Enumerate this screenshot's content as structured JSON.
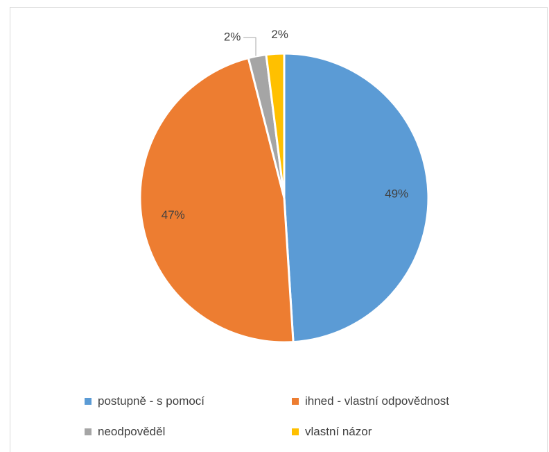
{
  "chart_data": {
    "type": "pie",
    "title": "",
    "categories": [
      "postupně - s pomocí",
      "ihned - vlastní odpovědnost",
      "neodpověděl",
      "vlastní názor"
    ],
    "values": [
      49,
      47,
      2,
      2
    ],
    "data_labels": [
      "49%",
      "47%",
      "2%",
      "2%"
    ],
    "colors": [
      "#5b9bd5",
      "#ed7d31",
      "#a5a5a5",
      "#ffc000"
    ],
    "legend_position": "bottom",
    "start_angle": "12 o'clock, clockwise"
  }
}
